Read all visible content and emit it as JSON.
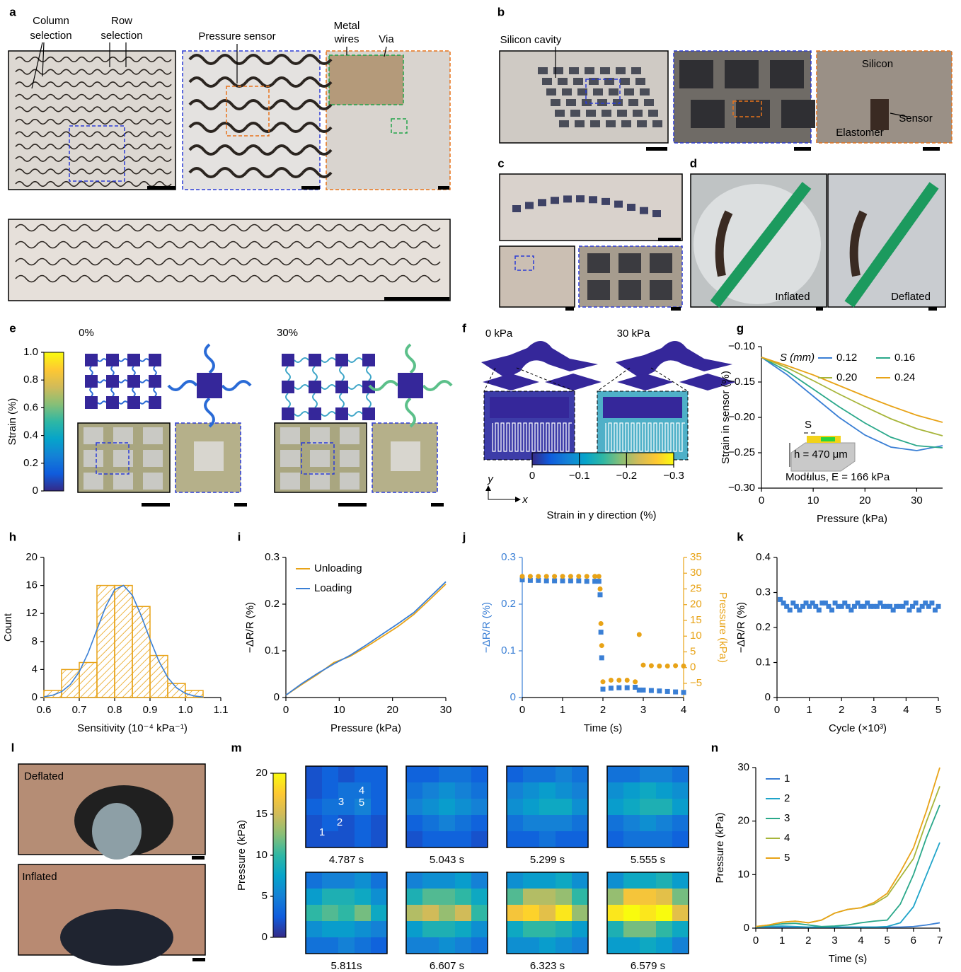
{
  "colormap": [
    "#352a87",
    "#0f5cdd",
    "#1481d6",
    "#06a4ca",
    "#2eb7a4",
    "#87bf77",
    "#d1bb59",
    "#fec832",
    "#f9fb0e"
  ],
  "panels": {
    "a": {
      "label": "a",
      "annotations": [
        "Column",
        "selection",
        "Row",
        "selection",
        "Pressure sensor",
        "Metal",
        "wires",
        "Via"
      ]
    },
    "b": {
      "label": "b",
      "annotations": [
        "Silicon cavity",
        "Silicon",
        "Sensor",
        "Elastomer"
      ]
    },
    "c": {
      "label": "c"
    },
    "d": {
      "label": "d",
      "annotations": [
        "Inflated",
        "Deflated"
      ]
    },
    "e": {
      "label": "e",
      "annotations": [
        "0%",
        "30%"
      ],
      "colorbar": {
        "label": "Strain (%)",
        "lim": [
          0,
          1
        ],
        "ticks": [
          0,
          0.2,
          0.4,
          0.6,
          0.8,
          {
            "value": 1,
            "label": "1.0"
          }
        ]
      }
    },
    "f": {
      "label": "f",
      "annotations": [
        "0 kPa",
        "30 kPa"
      ],
      "axes_labels": [
        "y",
        "x"
      ],
      "colorbar": {
        "label": "Strain in y direction (%)",
        "lim": [
          0,
          -0.3
        ],
        "ticks": [
          0,
          {
            "value": -0.1,
            "label": "−0.1"
          },
          {
            "value": -0.2,
            "label": "−0.2"
          },
          {
            "value": -0.3,
            "label": "−0.3"
          }
        ]
      }
    },
    "l": {
      "label": "l",
      "annotations": [
        "Deflated",
        "Inflated"
      ]
    }
  },
  "chart_data": [
    {
      "label": "g",
      "type": "line",
      "xlabel": "Pressure (kPa)",
      "ylabel": "Strain in sensor (%)",
      "x": [
        0,
        5,
        10,
        15,
        20,
        25,
        30,
        35
      ],
      "xlim": [
        0,
        35
      ],
      "xticks": [
        0,
        10,
        20,
        30
      ],
      "ylim": [
        -0.3,
        -0.1
      ],
      "yticks": [
        {
          "value": -0.3,
          "label": "−0.30"
        },
        {
          "value": -0.25,
          "label": "−0.25"
        },
        {
          "value": -0.2,
          "label": "−0.20"
        },
        {
          "value": -0.15,
          "label": "−0.15"
        },
        {
          "value": -0.1,
          "label": "−0.10"
        }
      ],
      "legend": "upper left",
      "legend_title": "S (mm)",
      "legend_columns": 2,
      "series": [
        {
          "name": "0.12",
          "color": "#3a7fd5",
          "values": [
            -0.115,
            -0.14,
            -0.17,
            -0.2,
            -0.225,
            -0.242,
            -0.247,
            -0.24
          ]
        },
        {
          "name": "0.16",
          "color": "#2aa88a",
          "values": [
            -0.115,
            -0.135,
            -0.16,
            -0.185,
            -0.208,
            -0.228,
            -0.24,
            -0.243
          ]
        },
        {
          "name": "0.20",
          "color": "#a7b53a",
          "values": [
            -0.115,
            -0.13,
            -0.148,
            -0.167,
            -0.185,
            -0.202,
            -0.216,
            -0.226
          ]
        },
        {
          "name": "0.24",
          "color": "#e8a317",
          "values": [
            -0.115,
            -0.127,
            -0.14,
            -0.155,
            -0.17,
            -0.184,
            -0.197,
            -0.207
          ]
        }
      ],
      "annotations": [
        "S",
        "h = 470 μm",
        "Modulus, E = 166 kPa"
      ]
    },
    {
      "label": "h",
      "type": "histogram",
      "xlabel": "Sensitivity (10⁻⁴ kPa⁻¹)",
      "ylabel": "Count",
      "bins": [
        0.6,
        0.65,
        0.7,
        0.75,
        0.8,
        0.85,
        0.9,
        0.95,
        1.0,
        1.05
      ],
      "counts": [
        1,
        4,
        5,
        16,
        16,
        13,
        6,
        2,
        1
      ],
      "color": "#e8a317",
      "curve": {
        "color": "#3a7fd5",
        "x": [
          0.6,
          0.625,
          0.65,
          0.675,
          0.7,
          0.725,
          0.75,
          0.775,
          0.8,
          0.825,
          0.85,
          0.875,
          0.9,
          0.925,
          0.95,
          0.975,
          1.0,
          1.025,
          1.05
        ],
        "values": [
          0.11,
          0.33,
          0.84,
          1.87,
          3.68,
          6.37,
          9.7,
          13.0,
          15.4,
          16.0,
          14.6,
          11.7,
          8.3,
          5.2,
          2.85,
          1.38,
          0.58,
          0.22,
          0.07
        ]
      },
      "xlim": [
        0.6,
        1.1
      ],
      "xticks": [
        0.6,
        0.7,
        0.8,
        0.9,
        {
          "value": 1,
          "label": "1.0"
        },
        1.1
      ],
      "ylim": [
        0,
        20
      ],
      "yticks": [
        0,
        4,
        8,
        12,
        16,
        20
      ]
    },
    {
      "label": "i",
      "type": "line",
      "xlabel": "Pressure (kPa)",
      "ylabel": "−ΔR/R (%)",
      "x": [
        0,
        3,
        6,
        9,
        12,
        15,
        18,
        21,
        24,
        27,
        30
      ],
      "xlim": [
        0,
        30
      ],
      "xticks": [
        0,
        10,
        20,
        30
      ],
      "ylim": [
        0,
        0.3
      ],
      "yticks": [
        0,
        0.1,
        0.2,
        0.3
      ],
      "legend": "upper left",
      "series": [
        {
          "name": "Unloading",
          "color": "#e8a317",
          "values": [
            0.005,
            0.028,
            0.05,
            0.075,
            0.088,
            0.108,
            0.13,
            0.152,
            0.178,
            0.21,
            0.243
          ]
        },
        {
          "name": "Loading",
          "color": "#3a7fd5",
          "values": [
            0.005,
            0.03,
            0.052,
            0.072,
            0.09,
            0.112,
            0.135,
            0.158,
            0.182,
            0.215,
            0.248
          ]
        }
      ]
    },
    {
      "label": "j",
      "type": "scatter",
      "xlabel": "Time (s)",
      "ylabel": "−ΔR/R (%)",
      "y2label": "Pressure (kPa)",
      "x": [
        0,
        0.2,
        0.4,
        0.6,
        0.8,
        1,
        1.2,
        1.4,
        1.6,
        1.8,
        1.9,
        1.93,
        1.95,
        1.97,
        2,
        2.2,
        2.4,
        2.6,
        2.8,
        2.9,
        3,
        3.2,
        3.4,
        3.6,
        3.8,
        4
      ],
      "xlim": [
        0,
        4
      ],
      "xticks": [
        0,
        1,
        2,
        3,
        4
      ],
      "ylim": [
        0,
        0.3
      ],
      "yticks": [
        0,
        0.1,
        0.2,
        0.3
      ],
      "y2lim": [
        -9.5,
        35
      ],
      "y2ticks": [
        {
          "value": -5,
          "label": "−5"
        },
        0,
        5,
        10,
        15,
        20,
        25,
        30,
        35
      ],
      "series": [
        {
          "color": "#3a7fd5",
          "marker": "square",
          "values": [
            0.252,
            0.251,
            0.251,
            0.25,
            0.25,
            0.25,
            0.25,
            0.25,
            0.249,
            0.249,
            0.249,
            0.22,
            0.14,
            0.085,
            0.018,
            0.02,
            0.021,
            0.021,
            0.022,
            0.016,
            0.016,
            0.015,
            0.014,
            0.013,
            0.012,
            0.011
          ]
        },
        {
          "color": "#e8a317",
          "marker": "circle",
          "axis": "y2",
          "values": [
            29,
            29,
            29,
            29,
            29,
            29,
            29,
            29,
            29,
            29,
            29,
            25,
            14,
            7,
            -4.5,
            -4,
            -4,
            -4,
            -4.5,
            10.5,
            0.8,
            0.6,
            0.5,
            0.5,
            0.6,
            0.5
          ]
        }
      ]
    },
    {
      "label": "k",
      "type": "scatter",
      "xlabel": "Cycle (×10³)",
      "ylabel": "−ΔR/R (%)",
      "x": [
        0.1,
        0.2,
        0.3,
        0.4,
        0.5,
        0.6,
        0.7,
        0.8,
        0.9,
        1.0,
        1.1,
        1.2,
        1.3,
        1.4,
        1.5,
        1.6,
        1.7,
        1.8,
        1.9,
        2.0,
        2.1,
        2.2,
        2.3,
        2.4,
        2.5,
        2.6,
        2.7,
        2.8,
        2.9,
        3.0,
        3.1,
        3.2,
        3.3,
        3.4,
        3.5,
        3.6,
        3.7,
        3.8,
        3.9,
        4.0,
        4.1,
        4.2,
        4.3,
        4.4,
        4.5,
        4.6,
        4.7,
        4.8,
        4.9,
        5.0
      ],
      "xlim": [
        0,
        5
      ],
      "xticks": [
        0,
        1,
        2,
        3,
        4,
        5
      ],
      "ylim": [
        0,
        0.4
      ],
      "yticks": [
        0,
        0.1,
        0.2,
        0.3,
        0.4
      ],
      "series": [
        {
          "color": "#3a7fd5",
          "marker": "square",
          "values": [
            0.28,
            0.27,
            0.26,
            0.25,
            0.27,
            0.26,
            0.25,
            0.26,
            0.27,
            0.26,
            0.27,
            0.26,
            0.25,
            0.27,
            0.27,
            0.26,
            0.25,
            0.27,
            0.26,
            0.26,
            0.27,
            0.26,
            0.25,
            0.26,
            0.27,
            0.26,
            0.26,
            0.27,
            0.26,
            0.26,
            0.26,
            0.27,
            0.26,
            0.26,
            0.26,
            0.25,
            0.26,
            0.26,
            0.26,
            0.27,
            0.25,
            0.26,
            0.27,
            0.25,
            0.26,
            0.27,
            0.26,
            0.27,
            0.25,
            0.26
          ]
        }
      ]
    },
    {
      "label": "m",
      "type": "heatmap",
      "colorbar_label": "Pressure (kPa)",
      "zlim": [
        0,
        20
      ],
      "zticks": [
        0,
        5,
        10,
        15,
        20
      ],
      "point_labels": [
        "1",
        "2",
        "3",
        "4",
        "5"
      ],
      "maps": [
        {
          "caption": "4.787 s",
          "values": [
            [
              2,
              3,
              2,
              3,
              3
            ],
            [
              2,
              3,
              4,
              4,
              3
            ],
            [
              3,
              4,
              4,
              5,
              3
            ],
            [
              2,
              3,
              2,
              3,
              2
            ],
            [
              2,
              2,
              2,
              3,
              2
            ]
          ]
        },
        {
          "caption": "5.043 s",
          "values": [
            [
              3,
              3,
              4,
              4,
              3
            ],
            [
              4,
              5,
              6,
              5,
              4
            ],
            [
              5,
              6,
              7,
              6,
              5
            ],
            [
              3,
              4,
              5,
              4,
              3
            ],
            [
              2,
              3,
              3,
              3,
              2
            ]
          ]
        },
        {
          "caption": "5.299 s",
          "values": [
            [
              3,
              4,
              4,
              5,
              4
            ],
            [
              5,
              6,
              7,
              6,
              5
            ],
            [
              6,
              7,
              8,
              8,
              6
            ],
            [
              4,
              5,
              5,
              5,
              4
            ],
            [
              3,
              3,
              4,
              3,
              3
            ]
          ]
        },
        {
          "caption": "5.555 s",
          "values": [
            [
              4,
              4,
              5,
              5,
              4
            ],
            [
              6,
              7,
              8,
              7,
              6
            ],
            [
              7,
              8,
              9,
              9,
              7
            ],
            [
              4,
              5,
              6,
              5,
              4
            ],
            [
              3,
              4,
              4,
              4,
              3
            ]
          ]
        },
        {
          "caption": "5.811s",
          "values": [
            [
              4,
              5,
              5,
              6,
              4
            ],
            [
              7,
              9,
              9,
              8,
              6
            ],
            [
              10,
              11,
              10,
              12,
              8
            ],
            [
              6,
              7,
              7,
              6,
              5
            ],
            [
              4,
              4,
              5,
              4,
              3
            ]
          ]
        },
        {
          "caption": "6.607 s",
          "values": [
            [
              5,
              6,
              6,
              7,
              5
            ],
            [
              9,
              11,
              11,
              10,
              8
            ],
            [
              14,
              15,
              13,
              15,
              10
            ],
            [
              7,
              9,
              9,
              8,
              6
            ],
            [
              5,
              5,
              6,
              5,
              4
            ]
          ]
        },
        {
          "caption": "6.323 s",
          "values": [
            [
              6,
              7,
              7,
              8,
              6
            ],
            [
              11,
              14,
              14,
              13,
              10
            ],
            [
              17,
              18,
              16,
              19,
              13
            ],
            [
              8,
              10,
              10,
              9,
              7
            ],
            [
              6,
              6,
              7,
              6,
              5
            ]
          ]
        },
        {
          "caption": "6.579 s",
          "values": [
            [
              6,
              8,
              8,
              9,
              7
            ],
            [
              13,
              17,
              17,
              16,
              12
            ],
            [
              19,
              20,
              19,
              20,
              16
            ],
            [
              9,
              12,
              12,
              10,
              8
            ],
            [
              7,
              7,
              8,
              7,
              5
            ]
          ]
        }
      ]
    },
    {
      "label": "n",
      "type": "line",
      "xlabel": "Time (s)",
      "ylabel": "Pressure (kPa)",
      "x": [
        0,
        0.5,
        1,
        1.5,
        2,
        2.5,
        3,
        3.5,
        4,
        4.5,
        5,
        5.5,
        6,
        6.5,
        7
      ],
      "xlim": [
        0,
        7
      ],
      "xticks": [
        0,
        1,
        2,
        3,
        4,
        5,
        6,
        7
      ],
      "ylim": [
        0,
        30
      ],
      "yticks": [
        0,
        10,
        20,
        30
      ],
      "legend": "upper left",
      "series": [
        {
          "name": "1",
          "color": "#3a7fd5",
          "values": [
            0.2,
            0.2,
            0.2,
            0.2,
            0.2,
            0.2,
            0.2,
            0.2,
            0.2,
            0.2,
            0.2,
            0.2,
            0.3,
            0.6,
            1.0
          ]
        },
        {
          "name": "2",
          "color": "#1fa4c9",
          "values": [
            0.2,
            0.3,
            0.4,
            0.3,
            0.2,
            0.2,
            0.2,
            0.2,
            0.2,
            0.2,
            0.3,
            1,
            4,
            10,
            16
          ]
        },
        {
          "name": "3",
          "color": "#2aa88a",
          "values": [
            0.3,
            0.5,
            0.8,
            0.9,
            0.6,
            0.3,
            0.4,
            0.6,
            1,
            1.3,
            1.5,
            4.5,
            10,
            17,
            23
          ]
        },
        {
          "name": "4",
          "color": "#a7b53a",
          "values": [
            0.3,
            0.6,
            1.1,
            1.3,
            1.0,
            1.5,
            2.8,
            3.5,
            3.8,
            4.5,
            6,
            9.5,
            13,
            20,
            26.5
          ]
        },
        {
          "name": "5",
          "color": "#e8a317",
          "values": [
            0.3,
            0.6,
            1.1,
            1.3,
            1.0,
            1.5,
            2.8,
            3.5,
            3.8,
            4.8,
            6.5,
            10.5,
            15,
            22,
            30
          ]
        }
      ]
    }
  ]
}
